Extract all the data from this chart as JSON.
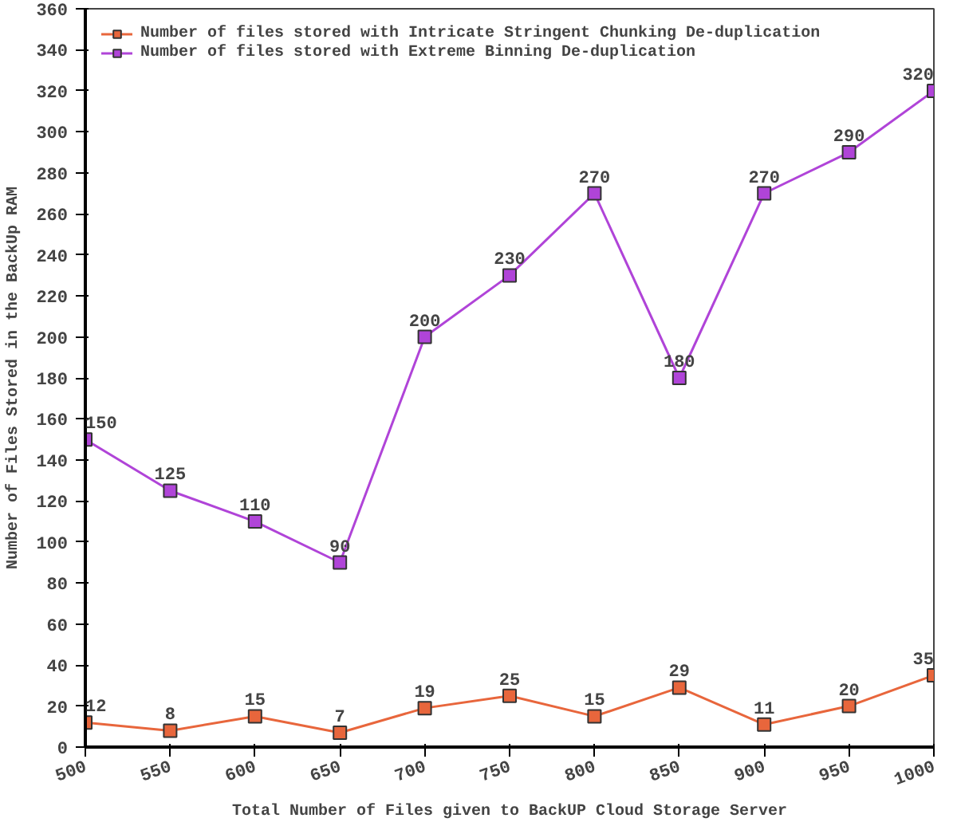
{
  "chart_data": {
    "type": "line",
    "xlabel": "Total Number of Files given to BackUP Cloud Storage Server",
    "ylabel": "Number of Files Stored in the BackUp RAM",
    "x": [
      500,
      550,
      600,
      650,
      700,
      750,
      800,
      850,
      900,
      950,
      1000
    ],
    "series": [
      {
        "name": "Number of files stored with Intricate Stringent Chunking De-duplication",
        "color": "#e8663c",
        "values": [
          12,
          8,
          15,
          7,
          19,
          25,
          15,
          29,
          11,
          20,
          35
        ]
      },
      {
        "name": "Number of files stored with Extreme Binning De-duplication",
        "color": "#b044d8",
        "values": [
          150,
          125,
          110,
          90,
          200,
          230,
          270,
          180,
          270,
          290,
          320
        ]
      }
    ],
    "xlim": [
      500,
      1000
    ],
    "xticks": [
      500,
      550,
      600,
      650,
      700,
      750,
      800,
      850,
      900,
      950,
      1000
    ],
    "ylim": [
      0,
      360
    ],
    "yticks": [
      0,
      20,
      40,
      60,
      80,
      100,
      120,
      140,
      160,
      180,
      200,
      220,
      240,
      260,
      280,
      300,
      320,
      340,
      360
    ],
    "marker": "square",
    "line_style": "solid",
    "data_labels": true,
    "grid": false,
    "legend": "top left"
  }
}
